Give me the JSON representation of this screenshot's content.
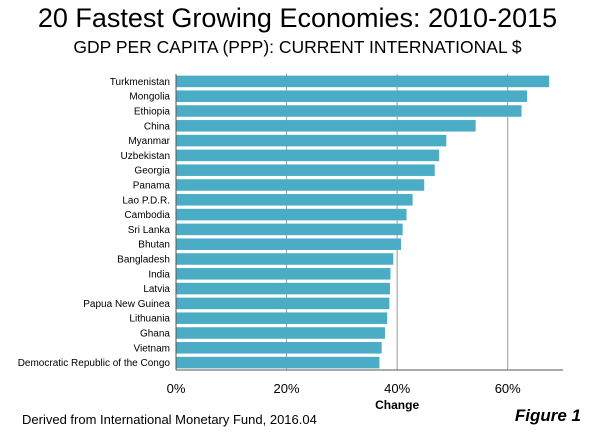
{
  "header": {
    "title": "20 Fastest Growing Economies: 2010-2015",
    "subtitle": "GDP PER CAPITA (PPP): CURRENT INTERNATIONAL $"
  },
  "footer": {
    "source": "Derived from International Monetary Fund, 2016.04",
    "figure_label": "Figure 1"
  },
  "chart_data": {
    "type": "bar",
    "orientation": "horizontal",
    "title": "20 Fastest Growing Economies: 2010-2015",
    "subtitle": "GDP PER CAPITA (PPP): CURRENT INTERNATIONAL $",
    "xlabel": "Change",
    "ylabel": "",
    "categories": [
      "Turkmenistan",
      "Mongolia",
      "Ethiopia",
      "China",
      "Myanmar",
      "Uzbekistan",
      "Georgia",
      "Panama",
      "Lao P.D.R.",
      "Cambodia",
      "Sri Lanka",
      "Bhutan",
      "Bangladesh",
      "India",
      "Latvia",
      "Papua New Guinea",
      "Lithuania",
      "Ghana",
      "Vietnam",
      "Democratic Republic of the Congo"
    ],
    "values": [
      67.5,
      63.5,
      62.5,
      54.2,
      48.9,
      47.6,
      46.8,
      44.9,
      42.8,
      41.7,
      41.0,
      40.7,
      39.3,
      38.8,
      38.7,
      38.6,
      38.2,
      37.8,
      37.2,
      36.8
    ],
    "xlim": [
      0,
      70
    ],
    "xticks": [
      0,
      20,
      40,
      60
    ],
    "xtick_labels": [
      "0%",
      "20%",
      "40%",
      "60%"
    ],
    "grid": true,
    "bar_color": "#4bacc6"
  }
}
